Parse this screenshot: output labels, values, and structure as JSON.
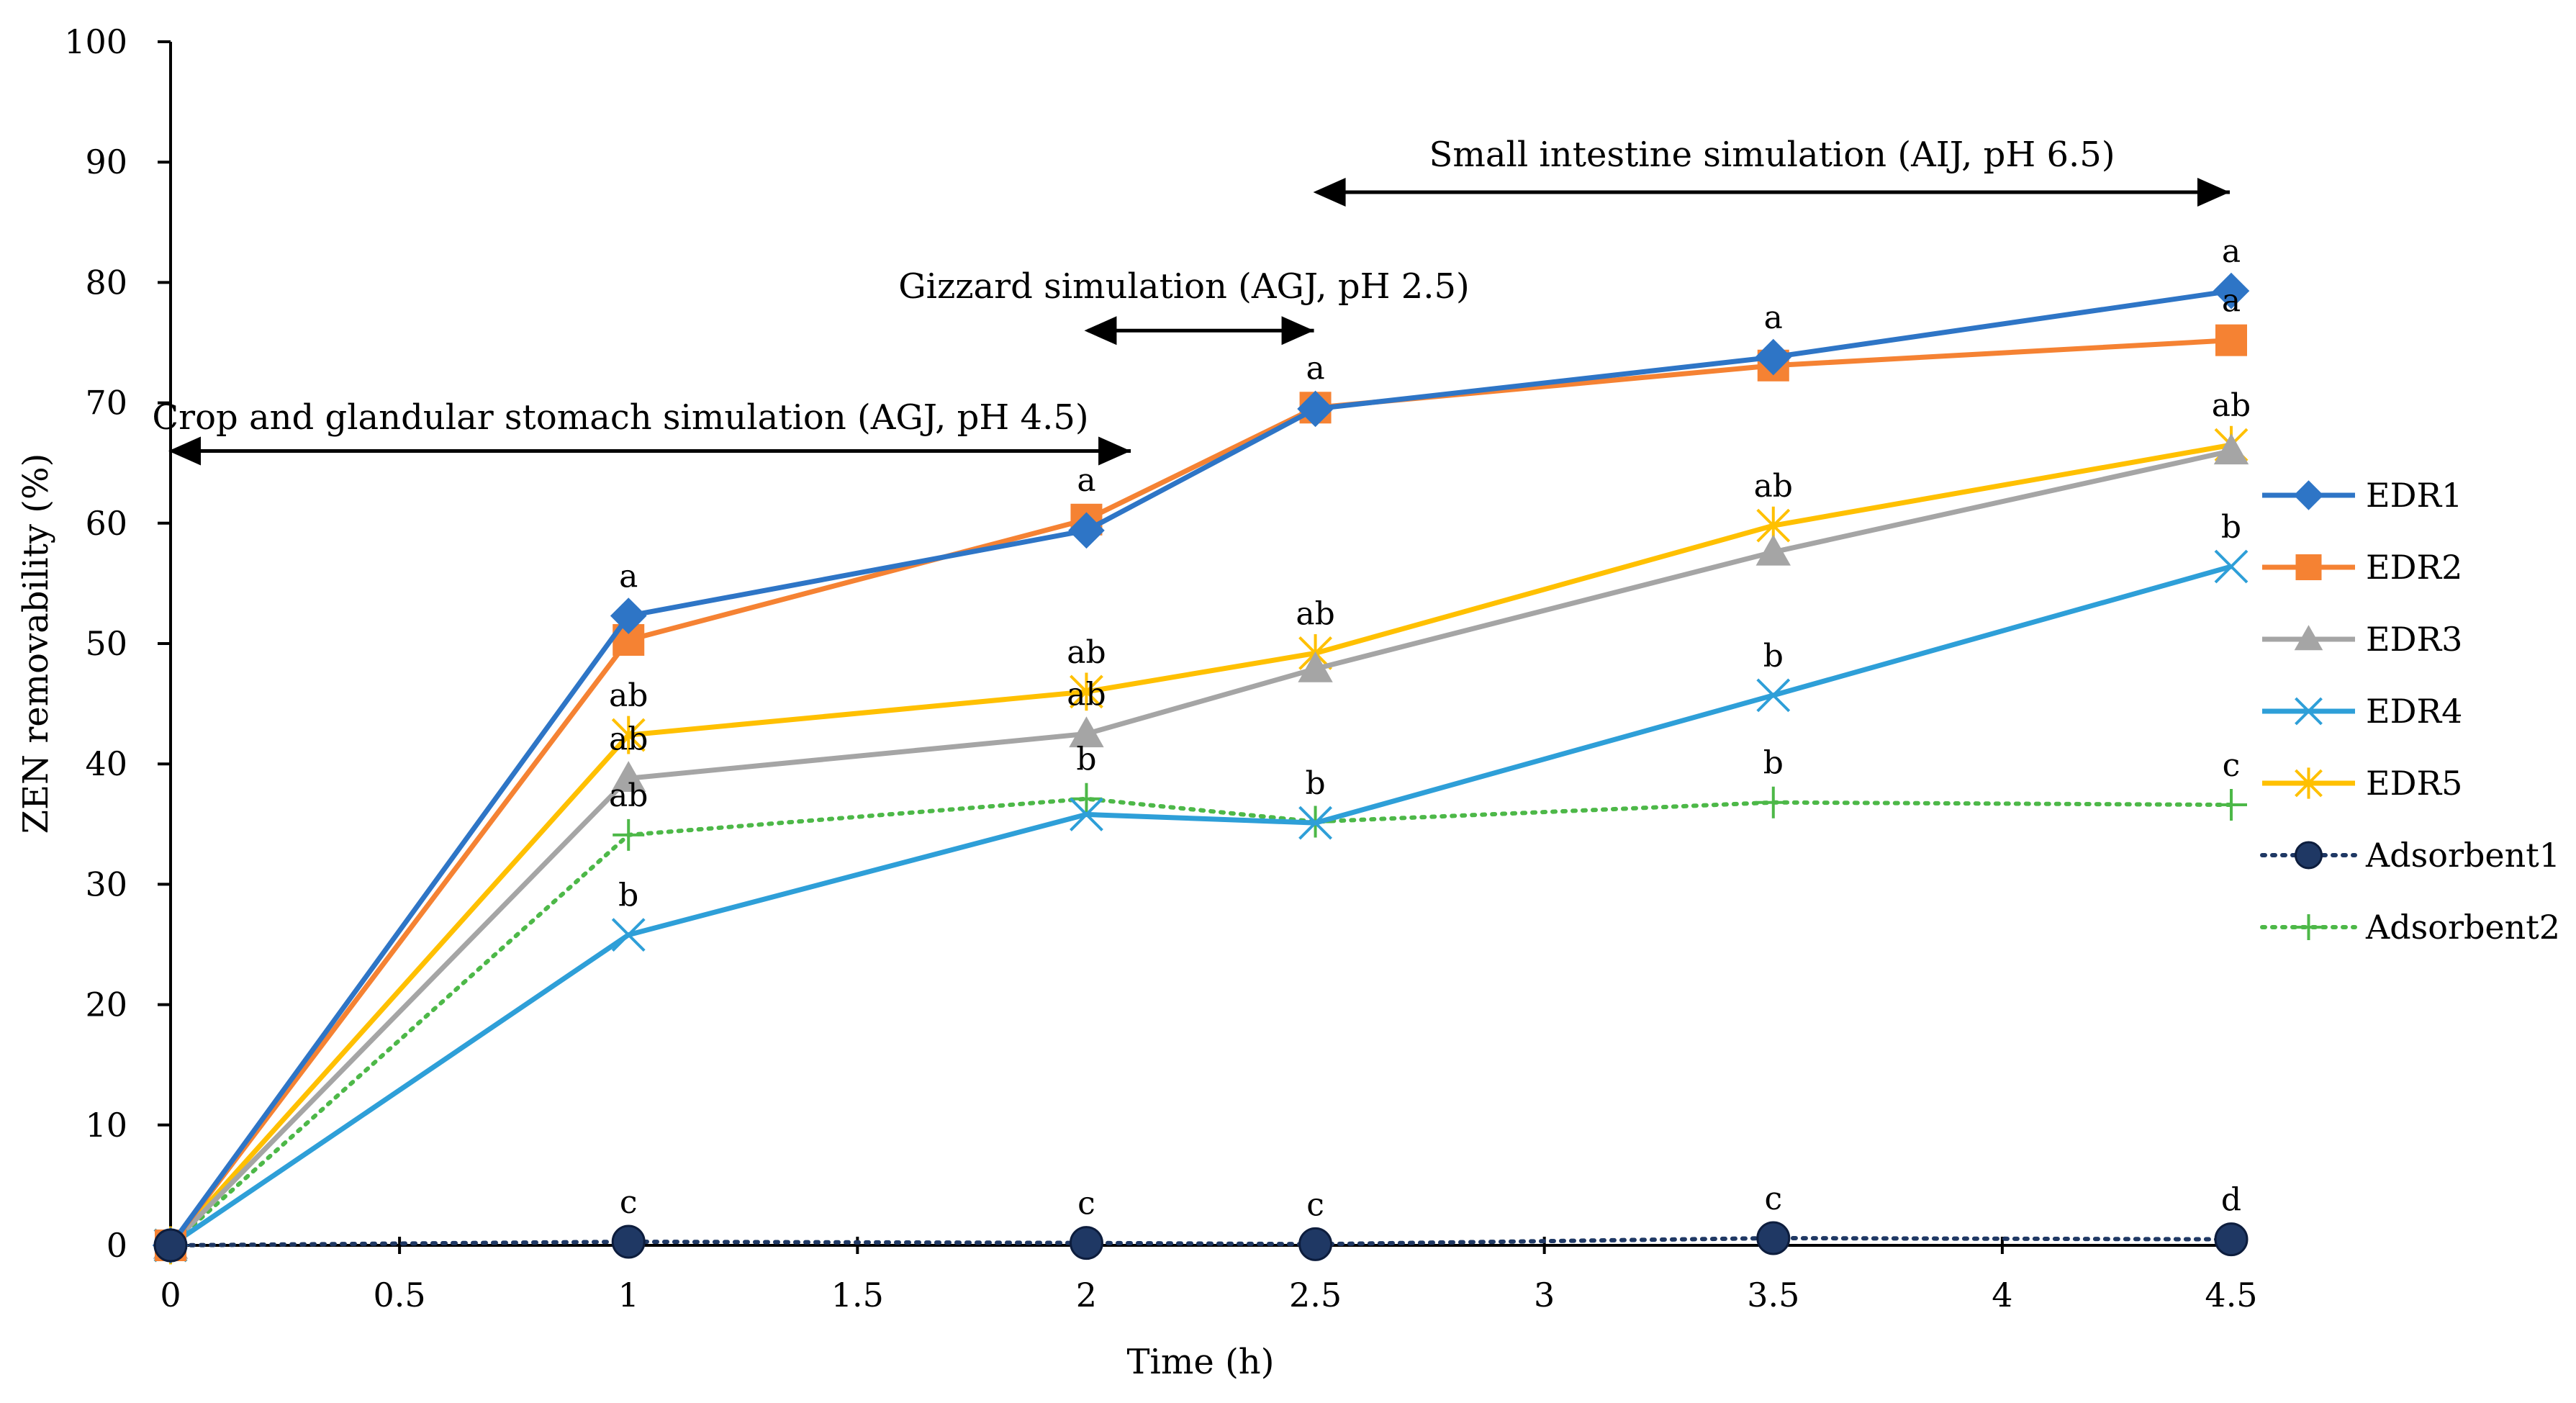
{
  "chart_data": {
    "type": "line",
    "title": "",
    "xlabel": "Time (h)",
    "ylabel": "ZEN removability (%)",
    "xlim": [
      0,
      4.5
    ],
    "ylim": [
      0,
      100
    ],
    "xticks": [
      0,
      0.5,
      1,
      1.5,
      2,
      2.5,
      3,
      3.5,
      4,
      4.5
    ],
    "xtick_labels": [
      "0",
      "0.5",
      "1",
      "1.5",
      "2",
      "2.5",
      "3",
      "3.5",
      "4",
      "4.5"
    ],
    "yticks": [
      0,
      10,
      20,
      30,
      40,
      50,
      60,
      70,
      80,
      90,
      100
    ],
    "ytick_labels": [
      "0",
      "10",
      "20",
      "30",
      "40",
      "50",
      "60",
      "70",
      "80",
      "90",
      "100"
    ],
    "grid": false,
    "legend_position": "right",
    "x": [
      0,
      1,
      2,
      2.5,
      3.5,
      4.5
    ],
    "series": [
      {
        "name": "EDR1",
        "color": "#2E75C6",
        "marker": "diamond",
        "dash": "solid",
        "values": [
          0,
          52.3,
          59.4,
          69.5,
          73.8,
          79.3
        ]
      },
      {
        "name": "EDR2",
        "color": "#F58233",
        "marker": "square",
        "dash": "solid",
        "values": [
          0,
          50.3,
          60.3,
          69.6,
          73.1,
          75.2
        ]
      },
      {
        "name": "EDR3",
        "color": "#A5A5A5",
        "marker": "triangle",
        "dash": "solid",
        "values": [
          0,
          38.8,
          42.5,
          47.9,
          57.6,
          66.0
        ]
      },
      {
        "name": "EDR4",
        "color": "#2E9FD8",
        "marker": "x",
        "dash": "solid",
        "values": [
          0,
          25.8,
          35.8,
          35.1,
          45.7,
          56.4
        ]
      },
      {
        "name": "EDR5",
        "color": "#FFC000",
        "marker": "star",
        "dash": "solid",
        "values": [
          0,
          42.4,
          46.0,
          49.2,
          59.8,
          66.5
        ]
      },
      {
        "name": "Adsorbent1",
        "color": "#1F3864",
        "marker": "circle",
        "dash": "dotted",
        "values": [
          0,
          0.3,
          0.2,
          0.1,
          0.6,
          0.5
        ]
      },
      {
        "name": "Adsorbent2",
        "color": "#4DB848",
        "marker": "plus",
        "dash": "dotted",
        "values": [
          0,
          34.1,
          37.1,
          35.2,
          36.8,
          36.6
        ]
      }
    ],
    "significance_labels": [
      {
        "x": 1,
        "y": 52.3,
        "text": "a"
      },
      {
        "x": 1,
        "y": 42.4,
        "text": "ab"
      },
      {
        "x": 1,
        "y": 38.8,
        "text": "ab"
      },
      {
        "x": 1,
        "y": 34.1,
        "text": "ab"
      },
      {
        "x": 1,
        "y": 25.8,
        "text": "b"
      },
      {
        "x": 1,
        "y": 0.3,
        "text": "c"
      },
      {
        "x": 2,
        "y": 60.3,
        "text": "a"
      },
      {
        "x": 2,
        "y": 46.0,
        "text": "ab"
      },
      {
        "x": 2,
        "y": 42.5,
        "text": "ab"
      },
      {
        "x": 2,
        "y": 37.1,
        "text": "b"
      },
      {
        "x": 2,
        "y": 0.2,
        "text": "c"
      },
      {
        "x": 2.5,
        "y": 69.6,
        "text": "a"
      },
      {
        "x": 2.5,
        "y": 49.2,
        "text": "ab"
      },
      {
        "x": 2.5,
        "y": 35.1,
        "text": "b"
      },
      {
        "x": 2.5,
        "y": 0.1,
        "text": "c"
      },
      {
        "x": 3.5,
        "y": 73.8,
        "text": "a"
      },
      {
        "x": 3.5,
        "y": 59.8,
        "text": "ab"
      },
      {
        "x": 3.5,
        "y": 45.7,
        "text": "b"
      },
      {
        "x": 3.5,
        "y": 36.8,
        "text": "b"
      },
      {
        "x": 3.5,
        "y": 0.6,
        "text": "c"
      },
      {
        "x": 4.5,
        "y": 79.3,
        "text": "a"
      },
      {
        "x": 4.5,
        "y": 75.2,
        "text": "a"
      },
      {
        "x": 4.5,
        "y": 66.5,
        "text": "ab"
      },
      {
        "x": 4.5,
        "y": 56.4,
        "text": "b"
      },
      {
        "x": 4.5,
        "y": 36.6,
        "text": "c"
      },
      {
        "x": 4.5,
        "y": 0.5,
        "text": "d"
      }
    ],
    "annotations": [
      {
        "text": "Crop and glandular stomach simulation (AGJ, pH 4.5)",
        "x_start": 0,
        "x_end": 2.1,
        "y": 66
      },
      {
        "text": "Gizzard simulation (AGJ, pH 2.5)",
        "x_start": 2.0,
        "x_end": 2.5,
        "y": 76
      },
      {
        "text": "Small intestine simulation (AIJ, pH 6.5)",
        "x_start": 2.5,
        "x_end": 4.5,
        "y": 87.5
      }
    ]
  }
}
